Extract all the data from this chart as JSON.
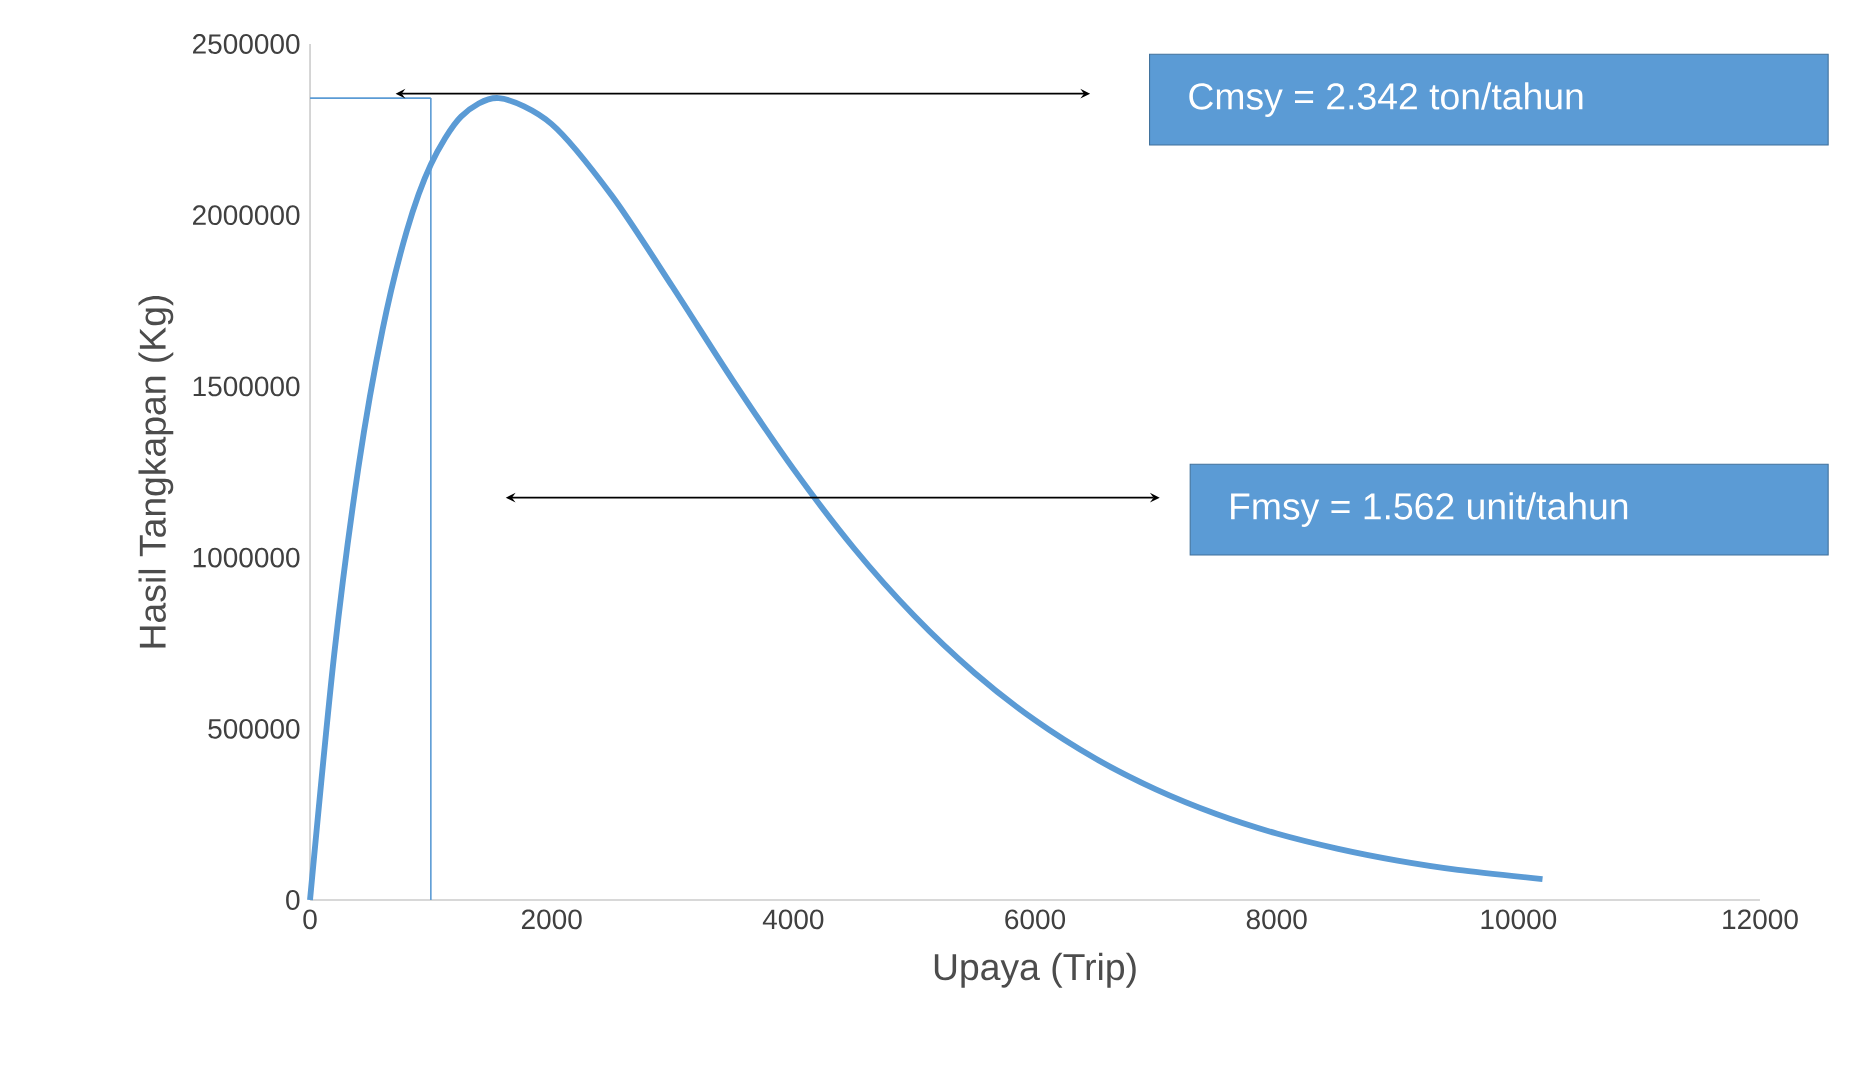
{
  "chart_data": {
    "type": "line",
    "xlabel": "Upaya (Trip)",
    "ylabel": "Hasil Tangkapan (Kg)",
    "x": [
      0,
      200,
      400,
      600,
      800,
      1000,
      1250,
      1562,
      2000,
      2500,
      3000,
      3500,
      4000,
      4500,
      5000,
      5500,
      6000,
      6500,
      7000,
      7500,
      8000,
      8500,
      9000,
      9500,
      10200
    ],
    "series": [
      {
        "color": "#5b9bd5",
        "values": [
          0,
          717000,
          1262000,
          1665000,
          1953000,
          2148000,
          2288000,
          2342000,
          2266000,
          2056000,
          1791000,
          1517000,
          1259000,
          1028000,
          830000,
          663000,
          525000,
          413000,
          323000,
          251000,
          194000,
          150000,
          115000,
          88000,
          61000
        ]
      }
    ],
    "xlim": [
      0,
      12000
    ],
    "ylim": [
      0,
      2500000
    ],
    "xticks": [
      0,
      2000,
      4000,
      6000,
      8000,
      10000,
      12000
    ],
    "yticks": [
      0,
      500000,
      1000000,
      1500000,
      2000000,
      2500000
    ],
    "grid": false,
    "marker": "none",
    "line_style": "solid",
    "ref_lines": [
      {
        "axis": "y",
        "value": 2342000,
        "color": "#5b9bd5"
      },
      {
        "axis": "x",
        "value": 1000,
        "color": "#5b9bd5"
      }
    ],
    "annotations": [
      "Cmsy = 2.342 ton/tahun",
      "Fmsy = 1.562 unit/tahun"
    ]
  }
}
